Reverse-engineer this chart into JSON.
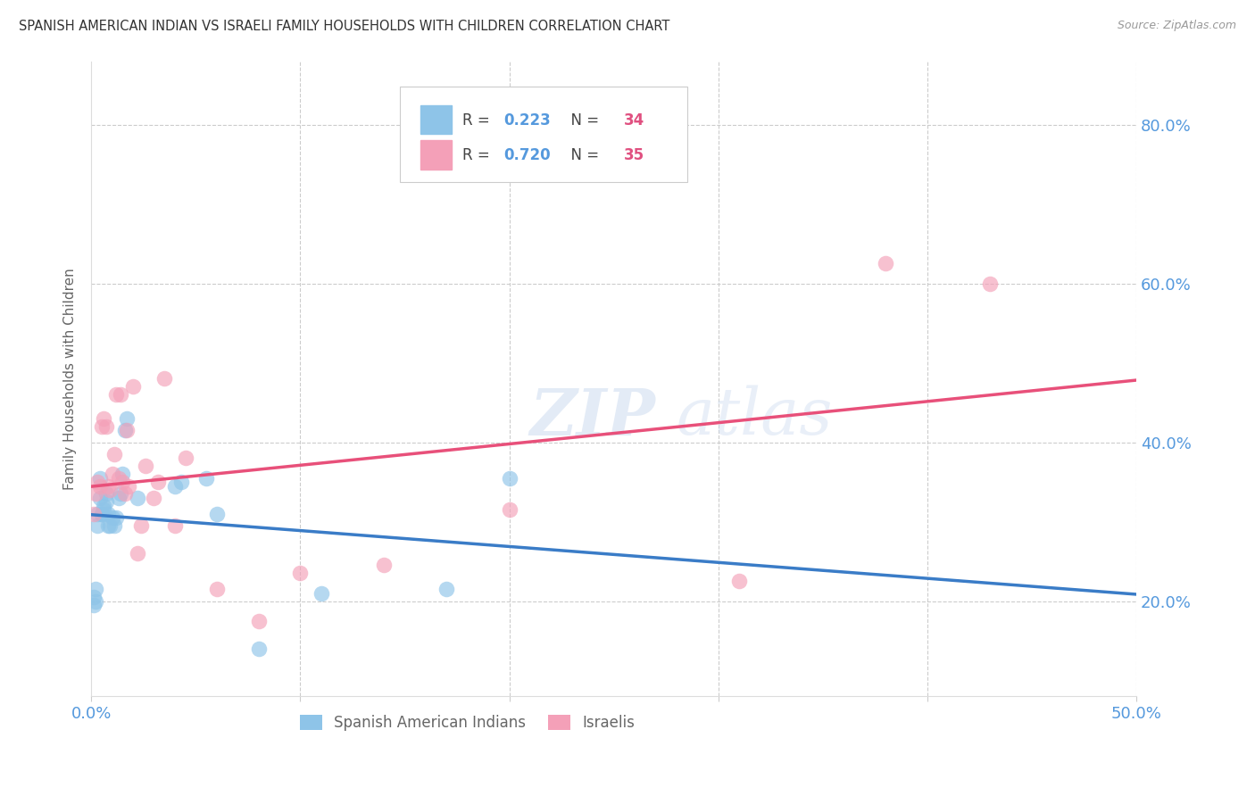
{
  "title": "SPANISH AMERICAN INDIAN VS ISRAELI FAMILY HOUSEHOLDS WITH CHILDREN CORRELATION CHART",
  "source": "Source: ZipAtlas.com",
  "ylabel": "Family Households with Children",
  "y_ticks_right": [
    "20.0%",
    "40.0%",
    "60.0%",
    "80.0%"
  ],
  "legend_label1": "Spanish American Indians",
  "legend_label2": "Israelis",
  "blue_color": "#8ec4e8",
  "pink_color": "#f4a0b8",
  "blue_line_color": "#3a7cc7",
  "pink_line_color": "#e8507a",
  "blue_dash_color": "#90bcd8",
  "watermark_zip": "ZIP",
  "watermark_atlas": "atlas",
  "xlim": [
    0.0,
    0.5
  ],
  "ylim": [
    0.08,
    0.88
  ],
  "y_tick_vals": [
    0.2,
    0.4,
    0.6,
    0.8
  ],
  "x_tick_vals": [
    0.0,
    0.1,
    0.2,
    0.3,
    0.4,
    0.5
  ],
  "blue_R": "0.223",
  "blue_N": "34",
  "pink_R": "0.720",
  "pink_N": "35",
  "blue_x": [
    0.001,
    0.001,
    0.002,
    0.002,
    0.003,
    0.003,
    0.004,
    0.004,
    0.005,
    0.005,
    0.006,
    0.006,
    0.007,
    0.007,
    0.008,
    0.008,
    0.009,
    0.01,
    0.011,
    0.012,
    0.013,
    0.014,
    0.015,
    0.016,
    0.017,
    0.022,
    0.04,
    0.043,
    0.055,
    0.06,
    0.08,
    0.11,
    0.17,
    0.2
  ],
  "blue_y": [
    0.195,
    0.205,
    0.215,
    0.2,
    0.295,
    0.31,
    0.33,
    0.355,
    0.31,
    0.31,
    0.32,
    0.315,
    0.325,
    0.335,
    0.295,
    0.31,
    0.295,
    0.305,
    0.295,
    0.305,
    0.33,
    0.335,
    0.36,
    0.415,
    0.43,
    0.33,
    0.345,
    0.35,
    0.355,
    0.31,
    0.14,
    0.21,
    0.215,
    0.355
  ],
  "pink_x": [
    0.001,
    0.002,
    0.003,
    0.004,
    0.005,
    0.006,
    0.007,
    0.008,
    0.009,
    0.01,
    0.011,
    0.012,
    0.013,
    0.014,
    0.015,
    0.016,
    0.017,
    0.018,
    0.02,
    0.022,
    0.024,
    0.026,
    0.03,
    0.032,
    0.035,
    0.04,
    0.045,
    0.06,
    0.08,
    0.1,
    0.14,
    0.2,
    0.31,
    0.38,
    0.43
  ],
  "pink_y": [
    0.31,
    0.335,
    0.35,
    0.345,
    0.42,
    0.43,
    0.42,
    0.345,
    0.34,
    0.36,
    0.385,
    0.46,
    0.355,
    0.46,
    0.35,
    0.335,
    0.415,
    0.345,
    0.47,
    0.26,
    0.295,
    0.37,
    0.33,
    0.35,
    0.48,
    0.295,
    0.38,
    0.215,
    0.175,
    0.235,
    0.245,
    0.315,
    0.225,
    0.625,
    0.6
  ]
}
